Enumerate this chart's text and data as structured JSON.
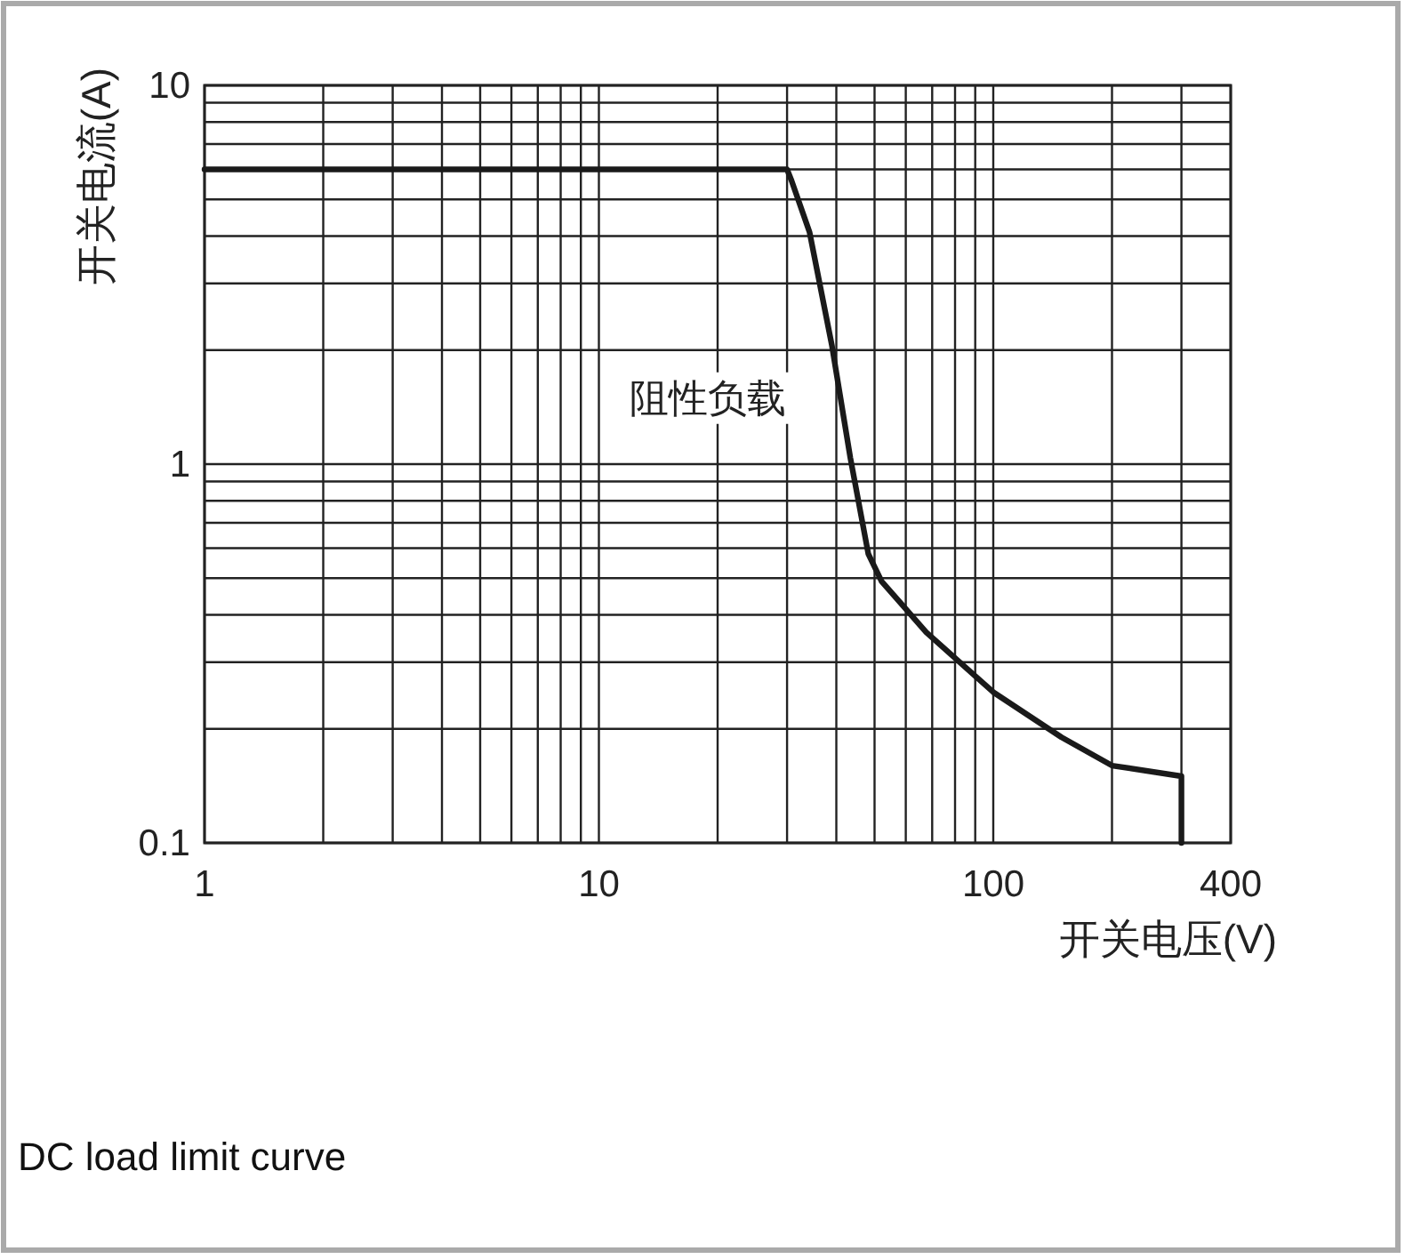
{
  "chart_data": {
    "type": "line",
    "xlabel": "开关电压(V)",
    "ylabel": "开关电流(A)",
    "log": "xy",
    "grid": true,
    "marker": "none",
    "line_style": "solid",
    "xlim": [
      1,
      400
    ],
    "ylim": [
      0.1,
      10
    ],
    "xticks": [
      1,
      {
        "value": 2,
        "label": null
      },
      {
        "value": 3,
        "label": null
      },
      {
        "value": 4,
        "label": null
      },
      {
        "value": 5,
        "label": null
      },
      {
        "value": 6,
        "label": null
      },
      {
        "value": 7,
        "label": null
      },
      {
        "value": 8,
        "label": null
      },
      {
        "value": 9,
        "label": null
      },
      10,
      {
        "value": 20,
        "label": null
      },
      {
        "value": 30,
        "label": null
      },
      {
        "value": 40,
        "label": null
      },
      {
        "value": 50,
        "label": null
      },
      {
        "value": 60,
        "label": null
      },
      {
        "value": 70,
        "label": null
      },
      {
        "value": 80,
        "label": null
      },
      {
        "value": 90,
        "label": null
      },
      100,
      {
        "value": 200,
        "label": null
      },
      {
        "value": 300,
        "label": null
      },
      400
    ],
    "yticks": [
      0.1,
      {
        "value": 0.2,
        "label": null
      },
      {
        "value": 0.3,
        "label": null
      },
      {
        "value": 0.4,
        "label": null
      },
      {
        "value": 0.5,
        "label": null
      },
      {
        "value": 0.6,
        "label": null
      },
      {
        "value": 0.7,
        "label": null
      },
      {
        "value": 0.8,
        "label": null
      },
      {
        "value": 0.9,
        "label": null
      },
      1,
      {
        "value": 2,
        "label": null
      },
      {
        "value": 3,
        "label": null
      },
      {
        "value": 4,
        "label": null
      },
      {
        "value": 5,
        "label": null
      },
      {
        "value": 6,
        "label": null
      },
      {
        "value": 7,
        "label": null
      },
      {
        "value": 8,
        "label": null
      },
      {
        "value": 9,
        "label": null
      },
      10
    ],
    "series": [
      {
        "name": "阻性负载",
        "color": "#1a1a1a",
        "x": [
          1,
          30,
          30.8,
          34.2,
          39,
          43.4,
          48.2,
          52.1,
          67.6,
          100,
          149,
          200,
          300,
          300
        ],
        "values": [
          6,
          6,
          5.6,
          4.1,
          2.05,
          1.04,
          0.58,
          0.49,
          0.36,
          0.25,
          0.19,
          0.16,
          0.15,
          0.1
        ]
      }
    ],
    "annotations": [
      "DC load limit curve"
    ]
  }
}
